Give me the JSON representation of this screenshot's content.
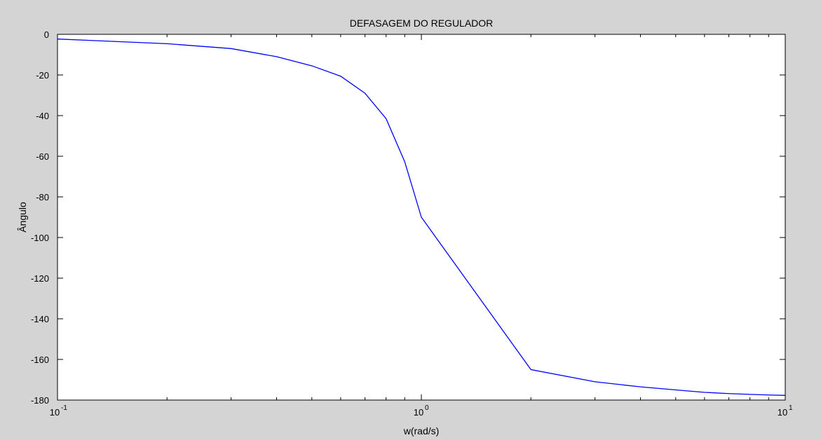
{
  "chart_data": {
    "type": "line",
    "title": "DEFASAGEM DO REGULADOR",
    "xlabel": "w(rad/s)",
    "ylabel": "Ângulo",
    "xscale": "log",
    "xlim": [
      0.1,
      10
    ],
    "ylim": [
      -180,
      0
    ],
    "grid": false,
    "line_color": "#0000ff",
    "background": "#d4d4d4",
    "x_tick_labels": [
      {
        "base": "10",
        "exp": "-1",
        "value": 0.1
      },
      {
        "base": "10",
        "exp": "0",
        "value": 1
      },
      {
        "base": "10",
        "exp": "1",
        "value": 10
      }
    ],
    "y_ticks": [
      0,
      -20,
      -40,
      -60,
      -80,
      -100,
      -120,
      -140,
      -160,
      -180
    ],
    "y_tick_labels": [
      "0",
      "-20",
      "-40",
      "-60",
      "-80",
      "-100",
      "-120",
      "-140",
      "-160",
      "-180"
    ],
    "series": [
      {
        "x": [
          0.1,
          0.2,
          0.3,
          0.4,
          0.5,
          0.6,
          0.7,
          0.8,
          0.9,
          1,
          2,
          3,
          4,
          5,
          6,
          7,
          8,
          9,
          10
        ],
        "y": [
          -2.3,
          -4.6,
          -7.0,
          -11.0,
          -15.5,
          -20.6,
          -29.0,
          -41.5,
          -62.7,
          -90.0,
          -165.0,
          -171.0,
          -173.5,
          -175.0,
          -176.2,
          -176.8,
          -177.2,
          -177.5,
          -177.7
        ]
      }
    ]
  }
}
